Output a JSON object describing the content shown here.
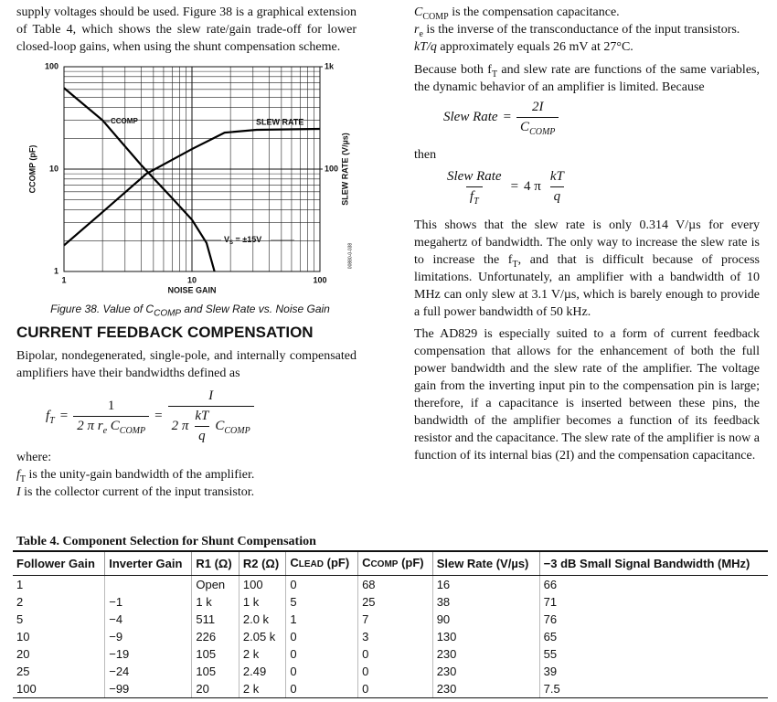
{
  "left_column": {
    "intro": "supply voltages should be used. Figure 38 is a graphical extension of Table 4, which shows the slew rate/gain trade-off for lower closed-loop gains, when using the shunt compensation scheme.",
    "caption": [
      "Figure 38. Value of C",
      "COMP",
      " and Slew Rate vs. Noise Gain"
    ],
    "heading": "CURRENT FEEDBACK COMPENSATION",
    "paragraph": "Bipolar, nondegenerated, single-pole, and internally compensated amplifiers have their bandwidths defined as",
    "formula": {
      "lhs": "f",
      "lhs_sub": "T",
      "eq": "=",
      "num_1": "1",
      "den_1": [
        "2 π r",
        "e",
        " C",
        "COMP"
      ],
      "num_2": "I",
      "den_2_pre": "2 π",
      "den_2_num": "kT",
      "den_2_den": "q",
      "den_2_post": "C",
      "den_2_post_sub": "COMP"
    },
    "where": "where:",
    "definitions": [
      [
        "f",
        "T",
        " is the unity-gain bandwidth of the amplifier."
      ],
      [
        "I",
        " is the collector current of the input transistor."
      ]
    ]
  },
  "right_column": {
    "definitions": [
      [
        "C",
        "COMP",
        " is the compensation capacitance."
      ],
      [
        "r",
        "e",
        " is the inverse of the transconductance of the input transistors."
      ],
      [
        "kT/q",
        " approximately equals 26 mV at 27°C."
      ]
    ],
    "paragraph_1": [
      "Because both f",
      "T",
      " and slew rate are functions of the same variables, the dynamic behavior of an amplifier is limited. Because"
    ],
    "formula_1": {
      "lhs": "Slew Rate",
      "eq": "=",
      "num": "2I",
      "den": "C",
      "den_sub": "COMP"
    },
    "then": "then",
    "formula_2": {
      "lhs_num": "Slew Rate",
      "lhs_den": "f",
      "lhs_den_sub": "T",
      "eq": "=",
      "coef": "4 π",
      "num": "kT",
      "den": "q"
    },
    "paragraph_2": [
      "This shows that the slew rate is only 0.314 V/µs for every megahertz of bandwidth. The only way to increase the slew rate is to increase the f",
      "T",
      ", and that is difficult because of process limitations. Unfortunately, an amplifier with a bandwidth of 10 MHz can only slew at 3.1 V/µs, which is barely enough to provide a full power bandwidth of 50 kHz."
    ],
    "paragraph_3": "The AD829 is especially suited to a form of current feedback compensation that allows for the enhancement of both the full power bandwidth and the slew rate of the amplifier. The voltage gain from the inverting input pin to the compensation pin is large; therefore, if a capacitance is inserted between these pins, the bandwidth of the amplifier becomes a function of its feedback resistor and the capacitance. The slew rate of the amplifier is now a function of its internal bias (2I) and the compensation capacitance."
  },
  "chart_data": {
    "type": "line",
    "x_label": "NOISE GAIN",
    "y_label": "CCOMP (pF)",
    "y2_label": "SLEW RATE (V/µs)",
    "code": "00880-0-038",
    "annotation": [
      "V",
      "S",
      " = ±15V"
    ],
    "xlim": [
      1,
      100
    ],
    "xticks": [
      1,
      10,
      100
    ],
    "ylim": [
      1,
      100
    ],
    "yticks": [
      1,
      10,
      100
    ],
    "y2lim": [
      10,
      1000
    ],
    "y2ticks": [
      100,
      {
        "value": 1000,
        "label": "1k"
      }
    ],
    "log_x": true,
    "log_y": true,
    "grid": true,
    "xminor": [
      2,
      3,
      4,
      5,
      6,
      7,
      8,
      9,
      20,
      30,
      40,
      50,
      60,
      70,
      80,
      90
    ],
    "yminor": [
      2,
      3,
      4,
      5,
      6,
      7,
      8,
      9,
      20,
      30,
      40,
      50,
      60,
      70,
      80,
      90
    ],
    "series": [
      {
        "name": "CCOMP",
        "color": "#000000",
        "x": [
          1,
          2,
          4,
          7,
          10,
          13,
          15
        ],
        "values": [
          62,
          30,
          11,
          5.2,
          3.2,
          1.9,
          1
        ]
      },
      {
        "name": "SLEW RATE",
        "color": "#000000",
        "axis": "y2",
        "x": [
          1,
          2,
          4.4,
          10,
          18,
          32,
          100
        ],
        "values": [
          18,
          38,
          90,
          157,
          227,
          242,
          247
        ]
      }
    ]
  },
  "table": {
    "title": "Table 4. Component Selection for Shunt Compensation",
    "headers": [
      "Follower Gain",
      "Inverter Gain",
      "R1 (Ω)",
      "R2 (Ω)",
      [
        "C",
        "LEAD",
        " (pF)"
      ],
      [
        "C",
        "COMP",
        " (pF)"
      ],
      "Slew Rate (V/µs)",
      "−3 dB Small Signal Bandwidth (MHz)"
    ],
    "rows": [
      [
        1,
        null,
        "Open",
        100,
        0,
        68,
        16,
        66
      ],
      [
        2,
        "−1",
        "1 k",
        "1 k",
        5,
        25,
        38,
        71
      ],
      [
        5,
        "−4",
        511,
        "2.0 k",
        1,
        7,
        90,
        76
      ],
      [
        10,
        "−9",
        226,
        "2.05 k",
        0,
        3,
        130,
        65
      ],
      [
        20,
        "−19",
        105,
        "2 k",
        0,
        0,
        230,
        55
      ],
      [
        25,
        "−24",
        105,
        2.49,
        0,
        0,
        230,
        39
      ],
      [
        100,
        "−99",
        20,
        "2 k",
        0,
        0,
        230,
        7.5
      ]
    ]
  }
}
